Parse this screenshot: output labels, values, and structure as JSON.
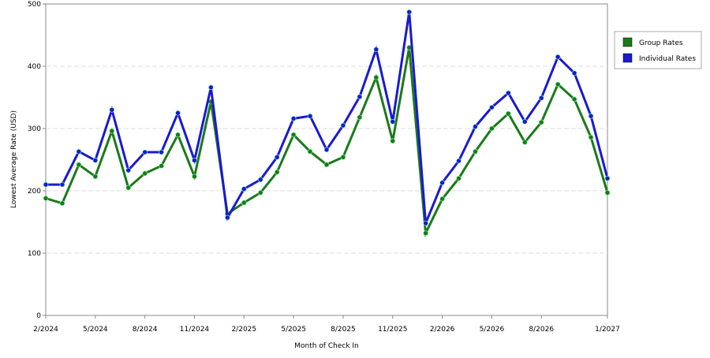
{
  "chart_data": {
    "type": "line",
    "xlabel": "Month of Check In",
    "ylabel": "Lowest Average Rate (USD)",
    "categories": [
      "2/2024",
      null,
      null,
      "5/2024",
      null,
      null,
      "8/2024",
      null,
      null,
      "11/2024",
      null,
      null,
      "2/2025",
      null,
      null,
      "5/2025",
      null,
      null,
      "8/2025",
      null,
      null,
      "11/2025",
      null,
      null,
      "2/2026",
      null,
      null,
      "5/2026",
      null,
      null,
      "8/2026",
      null,
      null,
      null,
      "1/2027"
    ],
    "series": [
      {
        "name": "Group Rates",
        "color": "#1a7a1a",
        "values": [
          188,
          180,
          242,
          223,
          296,
          205,
          228,
          240,
          290,
          223,
          343,
          163,
          181,
          197,
          230,
          290,
          263,
          242,
          254,
          318,
          382,
          280,
          430,
          132,
          187,
          220,
          263,
          300,
          324,
          278,
          310,
          371,
          347,
          286,
          197
        ]
      },
      {
        "name": "Individual Rates",
        "color": "#1a1ad0",
        "values": [
          210,
          210,
          263,
          249,
          330,
          233,
          262,
          262,
          325,
          249,
          366,
          157,
          203,
          218,
          254,
          316,
          320,
          266,
          305,
          351,
          427,
          311,
          487,
          148,
          213,
          248,
          303,
          334,
          357,
          311,
          349,
          415,
          389,
          320,
          220
        ]
      }
    ],
    "ylim": [
      0,
      500
    ],
    "yticks": [
      0,
      100,
      200,
      300,
      400,
      500
    ],
    "grid": true,
    "legend": "right"
  }
}
